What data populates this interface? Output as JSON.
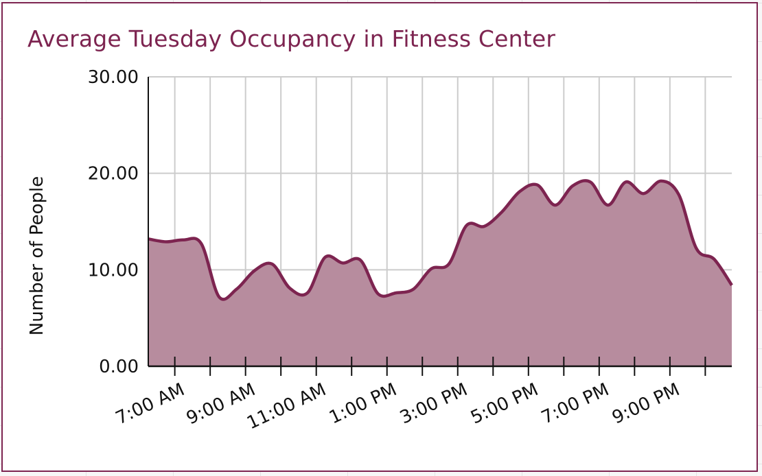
{
  "chart_data": {
    "type": "area",
    "title": "Average Tuesday Occupancy in Fitness Center",
    "xlabel": "",
    "ylabel": "Number of People",
    "ylim": [
      0,
      30
    ],
    "xlim": [
      "6:15 AM",
      "10:45 PM"
    ],
    "y_ticks": [
      "0.00",
      "10.00",
      "20.00",
      "30.00"
    ],
    "x_ticks": [
      "7:00 AM",
      "9:00 AM",
      "11:00 AM",
      "1:00 PM",
      "3:00 PM",
      "5:00 PM",
      "7:00 PM",
      "9:00 PM"
    ],
    "grid": true,
    "colors": {
      "line": "#7d2450",
      "fill": "#b78c9e",
      "grid": "#cccccc",
      "title": "#7d2450"
    },
    "x": [
      "6:15 AM",
      "6:45 AM",
      "7:15 AM",
      "7:45 AM",
      "8:15 AM",
      "8:45 AM",
      "9:15 AM",
      "9:45 AM",
      "10:15 AM",
      "10:45 AM",
      "11:15 AM",
      "11:45 AM",
      "12:15 PM",
      "12:45 PM",
      "1:15 PM",
      "1:45 PM",
      "2:15 PM",
      "2:45 PM",
      "3:15 PM",
      "3:45 PM",
      "4:15 PM",
      "4:45 PM",
      "5:15 PM",
      "5:45 PM",
      "6:15 PM",
      "6:45 PM",
      "7:15 PM",
      "7:45 PM",
      "8:15 PM",
      "8:45 PM",
      "9:15 PM",
      "9:45 PM",
      "10:15 PM",
      "10:45 PM"
    ],
    "values": [
      13.2,
      12.9,
      13.1,
      12.7,
      7.2,
      8.0,
      9.9,
      10.6,
      8.1,
      7.6,
      11.3,
      10.7,
      11.0,
      7.5,
      7.6,
      8.0,
      10.1,
      10.6,
      14.6,
      14.5,
      16.0,
      18.1,
      18.8,
      16.7,
      18.7,
      19.1,
      16.7,
      19.1,
      17.9,
      19.2,
      17.8,
      12.2,
      11.1,
      8.4
    ]
  }
}
